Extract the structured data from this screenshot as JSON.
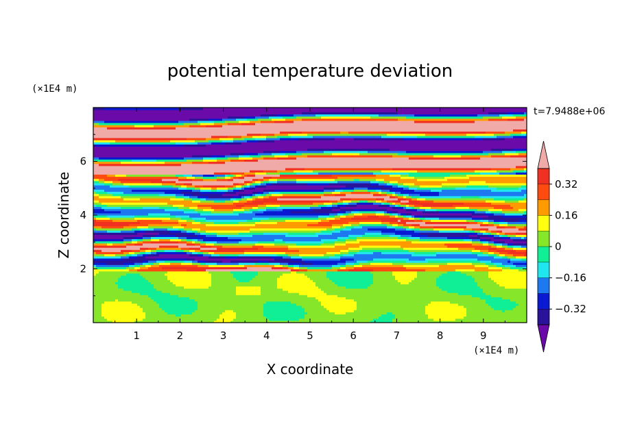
{
  "chart_data": {
    "type": "heatmap",
    "title": "potential temperature deviation",
    "xlabel": "X coordinate",
    "ylabel": "Z coordinate",
    "x_unit": "(×1E4 m)",
    "y_unit": "(×1E4 m)",
    "time_label": "t=7.9488e+06",
    "xlim": [
      0,
      10
    ],
    "ylim": [
      0,
      8
    ],
    "x_ticks": [
      "1",
      "2",
      "3",
      "4",
      "5",
      "6",
      "7",
      "8",
      "9"
    ],
    "y_ticks": [
      "2",
      "4",
      "6"
    ],
    "colorbar": {
      "levels": [
        -0.4,
        -0.32,
        -0.24,
        -0.16,
        -0.08,
        0,
        0.08,
        0.16,
        0.24,
        0.32,
        0.4
      ],
      "tick_labels": [
        "0.32",
        "0.16",
        "0",
        "−0.16",
        "−0.32"
      ],
      "colors": [
        "#6a0aa8",
        "#2a129a",
        "#0a1ad2",
        "#1e78f0",
        "#20e6f0",
        "#10ee96",
        "#86e62a",
        "#ffff10",
        "#ff9a00",
        "#ff4a10",
        "#f03020",
        "#f0aaa8"
      ],
      "extend": "both"
    },
    "regions": [
      {
        "z_range": [
          0,
          1.9
        ],
        "pattern": "mostly 0 to +0.08 (green) with patches of 0 to -0.08 (mint)"
      },
      {
        "z_range": [
          1.9,
          5.5
        ],
        "pattern": "horizontal layers alternating between -0.4 and +0.4"
      },
      {
        "z_range": [
          5.5,
          8
        ],
        "pattern": "broad bands alternating between below -0.4 (purple) and above +0.4 (pink)"
      }
    ]
  }
}
